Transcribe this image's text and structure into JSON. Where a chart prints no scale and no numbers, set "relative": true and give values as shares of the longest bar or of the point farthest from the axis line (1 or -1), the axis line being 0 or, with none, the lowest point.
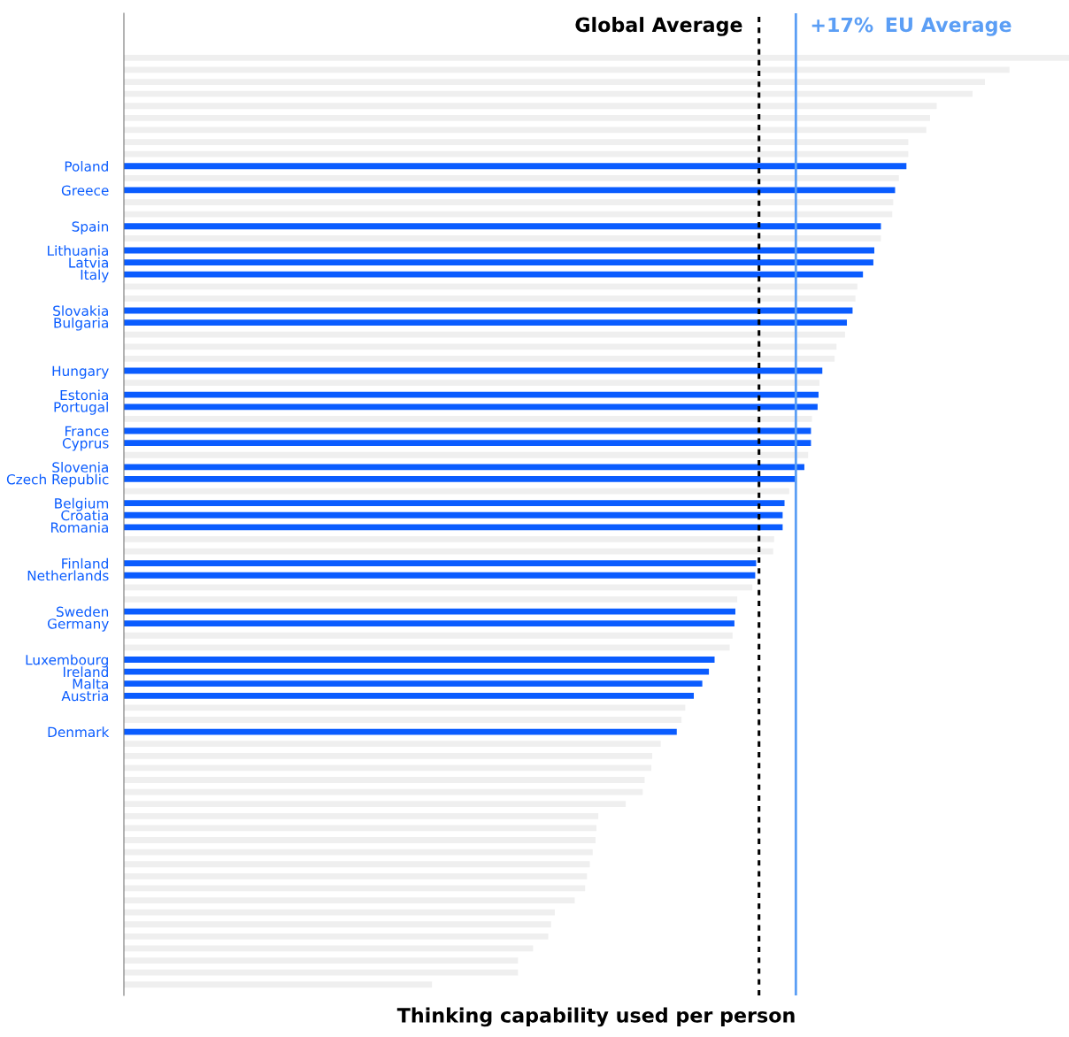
{
  "chart_data": {
    "type": "bar",
    "orientation": "horizontal",
    "relative": true,
    "xlabel": "Thinking capability used per person",
    "categories": [
      null,
      null,
      null,
      null,
      null,
      null,
      null,
      null,
      null,
      "Poland",
      null,
      "Greece",
      null,
      null,
      "Spain",
      null,
      "Lithuania",
      "Latvia",
      "Italy",
      null,
      null,
      "Slovakia",
      "Bulgaria",
      null,
      null,
      null,
      "Hungary",
      null,
      "Estonia",
      "Portugal",
      null,
      "France",
      "Cyprus",
      null,
      "Slovenia",
      "Czech Republic",
      null,
      "Belgium",
      "Croatia",
      "Romania",
      null,
      null,
      "Finland",
      "Netherlands",
      null,
      null,
      "Sweden",
      "Germany",
      null,
      null,
      "Luxembourg",
      "Ireland",
      "Malta",
      "Austria",
      null,
      null,
      "Denmark",
      null,
      null,
      null,
      null,
      null,
      null,
      null,
      null,
      null,
      null,
      null,
      null,
      null,
      null,
      null,
      null,
      null,
      null,
      null,
      null,
      null
    ],
    "values": [
      1.0,
      0.937,
      0.911,
      0.898,
      0.86,
      0.853,
      0.849,
      0.83,
      0.83,
      0.828,
      0.82,
      0.816,
      0.814,
      0.813,
      0.801,
      0.801,
      0.794,
      0.793,
      0.782,
      0.776,
      0.774,
      0.771,
      0.765,
      0.763,
      0.754,
      0.752,
      0.739,
      0.736,
      0.735,
      0.734,
      0.728,
      0.727,
      0.727,
      0.724,
      0.72,
      0.711,
      0.704,
      0.699,
      0.697,
      0.697,
      0.688,
      0.687,
      0.669,
      0.668,
      0.665,
      0.649,
      0.647,
      0.646,
      0.644,
      0.641,
      0.625,
      0.619,
      0.612,
      0.603,
      0.594,
      0.59,
      0.585,
      0.568,
      0.559,
      0.558,
      0.551,
      0.549,
      0.531,
      0.502,
      0.5,
      0.499,
      0.496,
      0.493,
      0.49,
      0.488,
      0.477,
      0.456,
      0.452,
      0.449,
      0.433,
      0.417,
      0.417,
      0.326
    ],
    "colors": [
      "#efefef",
      "#efefef",
      "#efefef",
      "#efefef",
      "#efefef",
      "#efefef",
      "#efefef",
      "#efefef",
      "#efefef",
      "#0a5cff",
      "#efefef",
      "#0a5cff",
      "#efefef",
      "#efefef",
      "#0a5cff",
      "#efefef",
      "#0a5cff",
      "#0a5cff",
      "#0a5cff",
      "#efefef",
      "#efefef",
      "#0a5cff",
      "#0a5cff",
      "#efefef",
      "#efefef",
      "#efefef",
      "#0a5cff",
      "#efefef",
      "#0a5cff",
      "#0a5cff",
      "#efefef",
      "#0a5cff",
      "#0a5cff",
      "#efefef",
      "#0a5cff",
      "#0a5cff",
      "#efefef",
      "#0a5cff",
      "#0a5cff",
      "#0a5cff",
      "#efefef",
      "#efefef",
      "#0a5cff",
      "#0a5cff",
      "#efefef",
      "#efefef",
      "#0a5cff",
      "#0a5cff",
      "#efefef",
      "#efefef",
      "#0a5cff",
      "#0a5cff",
      "#0a5cff",
      "#0a5cff",
      "#efefef",
      "#efefef",
      "#0a5cff",
      "#efefef",
      "#efefef",
      "#efefef",
      "#efefef",
      "#efefef",
      "#efefef",
      "#efefef",
      "#efefef",
      "#efefef",
      "#efefef",
      "#efefef",
      "#efefef",
      "#efefef",
      "#efefef",
      "#efefef",
      "#efefef",
      "#efefef",
      "#efefef",
      "#efefef",
      "#efefef",
      "#efefef"
    ],
    "ref_lines": [
      {
        "axis": "x",
        "value": 0.672,
        "label": "Global Average",
        "color": "#000000",
        "line_style": "dotted"
      },
      {
        "axis": "x",
        "value": 0.711,
        "label": "EU Average",
        "color": "#5b9ef5",
        "line_style": "solid"
      }
    ],
    "annotations": [
      "+17%"
    ],
    "grid": false,
    "legend": false
  }
}
